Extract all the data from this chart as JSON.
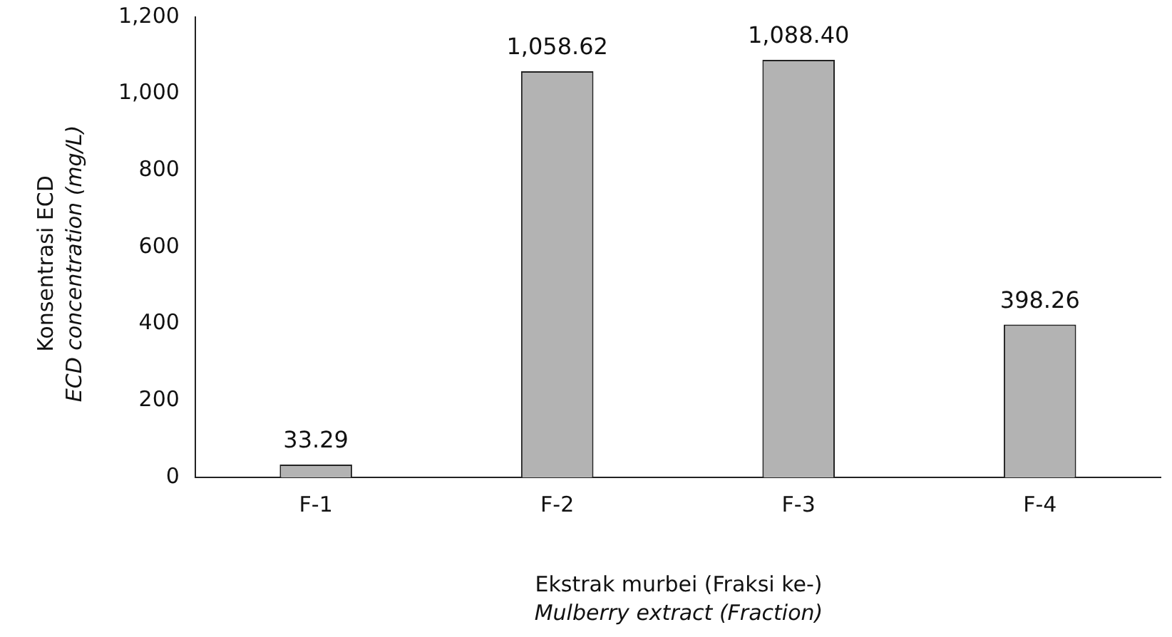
{
  "chart_data": {
    "type": "bar",
    "categories": [
      "F-1",
      "F-2",
      "F-3",
      "F-4"
    ],
    "values": [
      33.29,
      1058.62,
      1088.4,
      398.26
    ],
    "value_labels": [
      "33.29",
      "1,058.62",
      "1,088.40",
      "398.26"
    ],
    "color": "#b3b3b3",
    "ylabel": "Konsentrasi ECD\nECD concentration (mg/L)",
    "xlabel": "Ekstrak murbei (Fraksi ke-)\nMulberry extract (Fraction)",
    "ylim": [
      0,
      1200
    ],
    "yticks": [
      0,
      200,
      400,
      600,
      800,
      {
        "value": 1000,
        "label": "1,000"
      },
      {
        "value": 1200,
        "label": "1,200"
      }
    ],
    "grid": false,
    "legend": false
  }
}
